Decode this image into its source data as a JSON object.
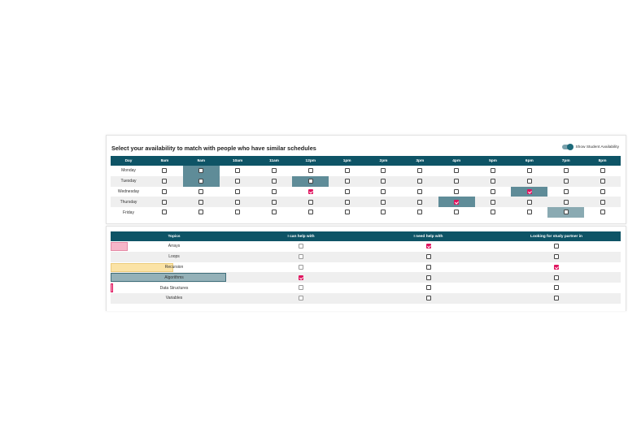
{
  "schedule": {
    "title": "Select your availability to match with people who have similar schedules",
    "toggle_label": "Show Student Availability",
    "day_header": "Day",
    "times": [
      "8am",
      "9am",
      "10am",
      "11am",
      "12pm",
      "1pm",
      "2pm",
      "3pm",
      "4pm",
      "5pm",
      "6pm",
      "7pm",
      "8pm"
    ],
    "days": [
      {
        "name": "Monday",
        "checked": []
      },
      {
        "name": "Tuesday",
        "checked": []
      },
      {
        "name": "Wednesday",
        "checked": [
          4,
          10
        ]
      },
      {
        "name": "Thursday",
        "checked": [
          8
        ]
      },
      {
        "name": "Friday",
        "checked": []
      }
    ],
    "highlights": [
      {
        "day": 0,
        "time": 1,
        "shade": "dark"
      },
      {
        "day": 1,
        "time": 1,
        "shade": "dark"
      },
      {
        "day": 1,
        "time": 4,
        "shade": "dark"
      },
      {
        "day": 2,
        "time": 10,
        "shade": "dark"
      },
      {
        "day": 3,
        "time": 8,
        "shade": "dark"
      },
      {
        "day": 4,
        "time": 11,
        "shade": "light"
      }
    ]
  },
  "topics": {
    "headers": [
      "Topics",
      "I can help with",
      "I need help with",
      "Looking for study partner in"
    ],
    "rows": [
      {
        "name": "Arrays",
        "can_help": false,
        "need_help": true,
        "partner": false,
        "bar_color": "#f7b5c8",
        "bar_border": "#e58aa6",
        "bar_level": 0.15
      },
      {
        "name": "Loops",
        "can_help": false,
        "need_help": false,
        "partner": false,
        "bar_color": "",
        "bar_border": "",
        "bar_level": 0
      },
      {
        "name": "Recursion",
        "can_help": false,
        "need_help": false,
        "partner": true,
        "bar_color": "#fbe3a6",
        "bar_border": "#ebcb7a",
        "bar_level": 0.54
      },
      {
        "name": "Algorithms",
        "can_help": true,
        "need_help": false,
        "partner": false,
        "bar_color": "#94b1b8",
        "bar_border": "#3f6f7b",
        "bar_level": 1.0
      },
      {
        "name": "Data Structures",
        "can_help": false,
        "need_help": false,
        "partner": false,
        "bar_color": "#f7b5c8",
        "bar_border": "#e0135e",
        "bar_level": 0.02
      },
      {
        "name": "Variables",
        "can_help": false,
        "need_help": false,
        "partner": false,
        "bar_color": "",
        "bar_border": "",
        "bar_level": 0
      }
    ]
  }
}
